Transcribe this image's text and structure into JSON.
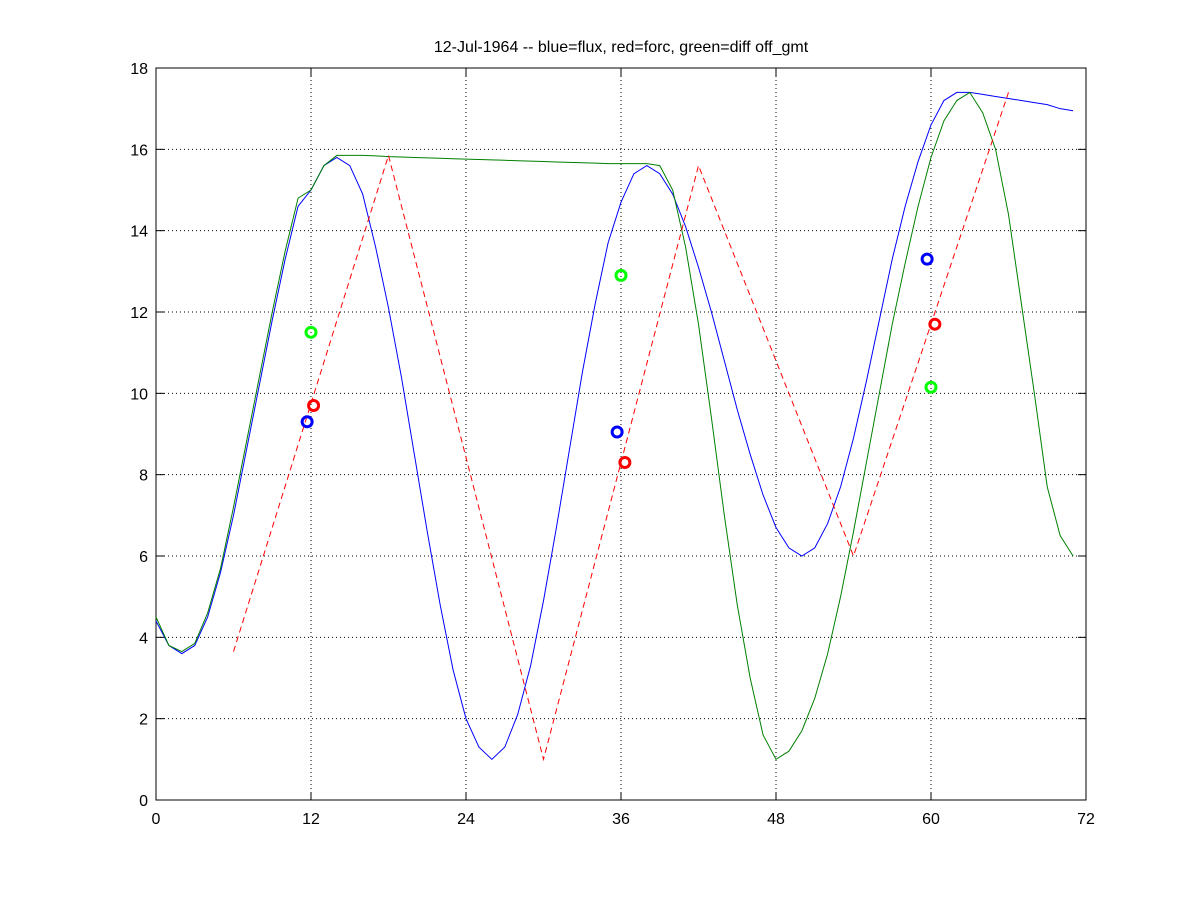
{
  "chart_data": {
    "type": "line",
    "title": "12-Jul-1964 -- blue=flux, red=forc, green=diff off_gmt",
    "xlim": [
      0,
      72
    ],
    "xticks": [
      0,
      12,
      24,
      36,
      48,
      60,
      72
    ],
    "ylim": [
      0,
      18
    ],
    "yticks": [
      0,
      2,
      4,
      6,
      8,
      10,
      12,
      14,
      16,
      18
    ],
    "grid": true,
    "series": [
      {
        "color": "#0000ff",
        "mode": "line",
        "x": [
          0,
          1,
          2,
          3,
          4,
          5,
          6,
          7,
          8,
          9,
          10,
          11,
          12,
          13,
          14,
          15,
          16,
          17,
          18,
          19,
          20,
          21,
          22,
          23,
          24,
          25,
          26,
          27,
          28,
          29,
          30,
          31,
          32,
          33,
          34,
          35,
          36,
          37,
          38,
          39,
          40,
          41,
          42,
          43,
          44,
          45,
          46,
          47,
          48,
          49,
          50,
          51,
          52,
          53,
          54,
          55,
          56,
          57,
          58,
          59,
          60,
          61,
          62,
          63,
          64,
          65,
          66,
          67,
          68,
          69,
          70,
          71
        ],
        "values": [
          4.4,
          3.8,
          3.6,
          3.8,
          4.5,
          5.6,
          7.0,
          8.6,
          10.2,
          11.8,
          13.3,
          14.6,
          15.0,
          15.6,
          15.8,
          15.6,
          14.9,
          13.6,
          12.1,
          10.4,
          8.5,
          6.6,
          4.8,
          3.2,
          2.0,
          1.3,
          1.0,
          1.3,
          2.1,
          3.3,
          4.9,
          6.7,
          8.6,
          10.5,
          12.2,
          13.7,
          14.7,
          15.4,
          15.6,
          15.4,
          14.9,
          14.1,
          13.1,
          12.0,
          10.8,
          9.6,
          8.5,
          7.5,
          6.7,
          6.2,
          6.0,
          6.2,
          6.8,
          7.7,
          8.9,
          10.3,
          11.8,
          13.3,
          14.6,
          15.7,
          16.6,
          17.2,
          17.4,
          17.4,
          17.35,
          17.3,
          17.25,
          17.2,
          17.15,
          17.1,
          17.0,
          16.95
        ]
      },
      {
        "color": "#008000",
        "mode": "line",
        "x": [
          0,
          1,
          2,
          3,
          4,
          5,
          6,
          7,
          8,
          9,
          10,
          11,
          12,
          13,
          14,
          15,
          16,
          17,
          18,
          19,
          20,
          21,
          22,
          23,
          24,
          25,
          26,
          27,
          28,
          29,
          30,
          31,
          32,
          33,
          34,
          35,
          36,
          37,
          38,
          39,
          40,
          41,
          42,
          43,
          44,
          45,
          46,
          47,
          48,
          49,
          50,
          51,
          52,
          53,
          54,
          55,
          56,
          57,
          58,
          59,
          60,
          61,
          62,
          63,
          64,
          65,
          66,
          67,
          68,
          69,
          70,
          71
        ],
        "values": [
          4.5,
          3.8,
          3.65,
          3.85,
          4.6,
          5.7,
          7.2,
          8.8,
          10.4,
          12.0,
          13.5,
          14.8,
          15.0,
          15.6,
          15.85,
          15.85,
          15.85,
          15.84,
          15.82,
          15.81,
          15.8,
          15.79,
          15.78,
          15.77,
          15.76,
          15.75,
          15.74,
          15.73,
          15.72,
          15.71,
          15.7,
          15.69,
          15.68,
          15.67,
          15.66,
          15.65,
          15.65,
          15.65,
          15.65,
          15.6,
          15.0,
          13.6,
          11.7,
          9.4,
          7.0,
          4.8,
          3.0,
          1.6,
          1.0,
          1.2,
          1.7,
          2.5,
          3.6,
          5.0,
          6.6,
          8.3,
          10.0,
          11.7,
          13.2,
          14.6,
          15.8,
          16.7,
          17.2,
          17.4,
          16.9,
          16.0,
          14.4,
          12.2,
          10.0,
          7.7,
          6.5,
          6.0
        ]
      },
      {
        "color": "#ff0000",
        "mode": "dashed",
        "x": [
          6,
          18,
          30,
          42,
          54,
          66
        ],
        "values": [
          3.65,
          15.85,
          1.0,
          15.6,
          6.0,
          17.4
        ]
      },
      {
        "color": "#0000ff",
        "mode": "markers",
        "x": [
          11.7,
          35.7,
          59.7
        ],
        "values": [
          9.3,
          9.05,
          13.3
        ]
      },
      {
        "color": "#ff0000",
        "mode": "markers",
        "x": [
          12.2,
          36.3,
          60.3
        ],
        "values": [
          9.7,
          8.3,
          11.7
        ]
      },
      {
        "color": "#00ff00",
        "mode": "markers",
        "x": [
          12.0,
          36.0,
          60.0
        ],
        "values": [
          11.5,
          12.9,
          10.15
        ]
      }
    ]
  }
}
